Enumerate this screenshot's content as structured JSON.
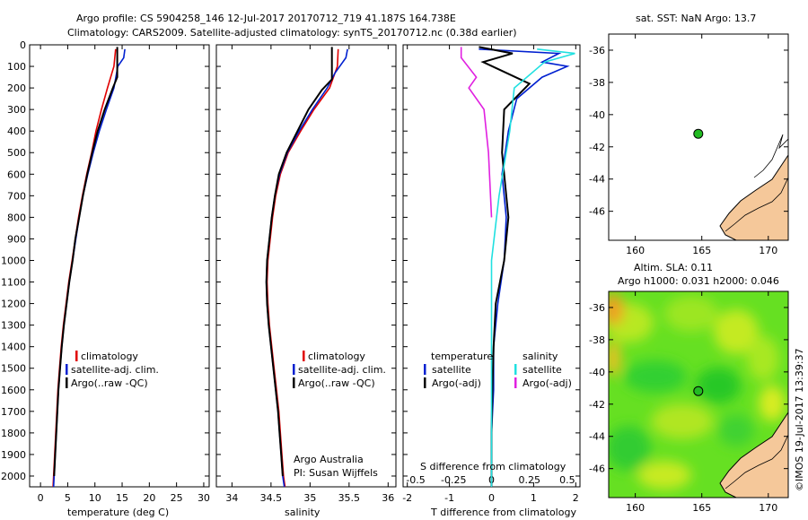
{
  "titles": {
    "line1": "Argo profile: CS 5904258_146 12-Jul-2017 20170712_719 41.187S 164.738E",
    "line2": "Climatology: CARS2009. Satellite-adjusted climatology: synTS_20170712.nc (0.38d earlier)"
  },
  "colors": {
    "climatology": "#e00000",
    "satellite": "#0020d0",
    "argo": "#000000",
    "cyan": "#20e0e0",
    "magenta": "#e020e0",
    "land": "#f5c89a",
    "marker": "#22bb22"
  },
  "chart_data": [
    {
      "type": "line",
      "panel": "temperature",
      "xlabel": "temperature (deg C)",
      "ylabel": "",
      "xlim": [
        -2,
        31
      ],
      "ylim": [
        0,
        2050
      ],
      "xticks": [
        "0",
        "5",
        "10",
        "15",
        "20",
        "25",
        "30"
      ],
      "yticks": [
        "0",
        "100",
        "200",
        "300",
        "400",
        "500",
        "600",
        "700",
        "800",
        "900",
        "1000",
        "1100",
        "1200",
        "1300",
        "1400",
        "1500",
        "1600",
        "1700",
        "1800",
        "1900",
        "2000"
      ],
      "legend": [
        "climatology",
        "satellite-adj. clim.",
        "Argo(..raw -QC)"
      ],
      "series": [
        {
          "name": "climatology",
          "color": "climatology",
          "points": [
            [
              13.8,
              20
            ],
            [
              13.5,
              100
            ],
            [
              12.3,
              200
            ],
            [
              11.2,
              300
            ],
            [
              10.2,
              400
            ],
            [
              9.4,
              500
            ],
            [
              8.5,
              600
            ],
            [
              7.7,
              700
            ],
            [
              7.0,
              800
            ],
            [
              6.4,
              900
            ],
            [
              5.8,
              1000
            ],
            [
              5.2,
              1100
            ],
            [
              4.7,
              1200
            ],
            [
              4.2,
              1300
            ],
            [
              3.8,
              1400
            ],
            [
              3.5,
              1500
            ],
            [
              3.2,
              1600
            ],
            [
              3.0,
              1700
            ],
            [
              2.8,
              1800
            ],
            [
              2.6,
              1900
            ],
            [
              2.4,
              2000
            ],
            [
              2.3,
              2050
            ]
          ]
        },
        {
          "name": "satellite-adj. clim.",
          "color": "satellite",
          "points": [
            [
              15.5,
              20
            ],
            [
              15.3,
              60
            ],
            [
              14.2,
              100
            ],
            [
              13.5,
              200
            ],
            [
              12.1,
              300
            ],
            [
              10.8,
              400
            ],
            [
              9.7,
              500
            ],
            [
              8.7,
              600
            ],
            [
              7.8,
              700
            ],
            [
              7.1,
              800
            ],
            [
              6.5,
              900
            ],
            [
              5.9,
              1000
            ],
            [
              5.3,
              1100
            ],
            [
              4.8,
              1200
            ],
            [
              4.3,
              1300
            ],
            [
              3.9,
              1400
            ],
            [
              3.6,
              1500
            ],
            [
              3.3,
              1600
            ],
            [
              3.1,
              1700
            ],
            [
              2.9,
              1800
            ],
            [
              2.7,
              1900
            ],
            [
              2.5,
              2000
            ],
            [
              2.4,
              2050
            ]
          ]
        },
        {
          "name": "Argo(..raw -QC)",
          "color": "argo",
          "points": [
            [
              14.1,
              10
            ],
            [
              14.1,
              150
            ],
            [
              13.3,
              200
            ],
            [
              11.8,
              300
            ],
            [
              10.5,
              400
            ],
            [
              9.5,
              500
            ],
            [
              8.6,
              600
            ],
            [
              7.8,
              700
            ],
            [
              7.1,
              800
            ],
            [
              6.4,
              900
            ],
            [
              5.9,
              1000
            ],
            [
              5.3,
              1100
            ],
            [
              4.8,
              1200
            ],
            [
              4.3,
              1300
            ],
            [
              3.9,
              1400
            ],
            [
              3.6,
              1500
            ],
            [
              3.3,
              1600
            ],
            [
              3.1,
              1700
            ],
            [
              2.9,
              1800
            ],
            [
              2.7,
              1900
            ],
            [
              2.5,
              2000
            ]
          ]
        }
      ]
    },
    {
      "type": "line",
      "panel": "salinity",
      "xlabel": "salinity",
      "xlim": [
        33.8,
        36.1
      ],
      "ylim": [
        0,
        2050
      ],
      "xticks": [
        "34",
        "34.5",
        "35",
        "35.5",
        "36"
      ],
      "legend": [
        "climatology",
        "satellite-adj. clim.",
        "Argo(..raw -QC)"
      ],
      "notes": [
        "Argo Australia",
        "PI: Susan Wijffels"
      ],
      "series": [
        {
          "name": "climatology",
          "color": "climatology",
          "points": [
            [
              35.36,
              20
            ],
            [
              35.35,
              100
            ],
            [
              35.25,
              200
            ],
            [
              35.05,
              300
            ],
            [
              34.88,
              400
            ],
            [
              34.72,
              500
            ],
            [
              34.62,
              600
            ],
            [
              34.56,
              700
            ],
            [
              34.52,
              800
            ],
            [
              34.49,
              900
            ],
            [
              34.46,
              1000
            ],
            [
              34.45,
              1100
            ],
            [
              34.46,
              1200
            ],
            [
              34.48,
              1300
            ],
            [
              34.51,
              1400
            ],
            [
              34.54,
              1500
            ],
            [
              34.57,
              1600
            ],
            [
              34.6,
              1700
            ],
            [
              34.62,
              1800
            ],
            [
              34.64,
              1900
            ],
            [
              34.66,
              2000
            ],
            [
              34.68,
              2050
            ]
          ]
        },
        {
          "name": "satellite-adj. clim.",
          "color": "satellite",
          "points": [
            [
              35.48,
              20
            ],
            [
              35.46,
              60
            ],
            [
              35.32,
              130
            ],
            [
              35.22,
              200
            ],
            [
              35.03,
              300
            ],
            [
              34.86,
              400
            ],
            [
              34.71,
              500
            ],
            [
              34.61,
              600
            ],
            [
              34.55,
              700
            ],
            [
              34.51,
              800
            ],
            [
              34.48,
              900
            ],
            [
              34.45,
              1000
            ],
            [
              34.44,
              1100
            ],
            [
              34.45,
              1200
            ],
            [
              34.47,
              1300
            ],
            [
              34.5,
              1400
            ],
            [
              34.53,
              1500
            ],
            [
              34.56,
              1600
            ],
            [
              34.59,
              1700
            ],
            [
              34.61,
              1800
            ],
            [
              34.63,
              1900
            ],
            [
              34.65,
              2000
            ],
            [
              34.67,
              2050
            ]
          ]
        },
        {
          "name": "Argo(..raw -QC)",
          "color": "argo",
          "points": [
            [
              35.28,
              10
            ],
            [
              35.28,
              160
            ],
            [
              35.15,
              210
            ],
            [
              34.98,
              300
            ],
            [
              34.84,
              400
            ],
            [
              34.7,
              500
            ],
            [
              34.6,
              600
            ],
            [
              34.55,
              700
            ],
            [
              34.51,
              800
            ],
            [
              34.48,
              900
            ],
            [
              34.45,
              1000
            ],
            [
              34.44,
              1100
            ],
            [
              34.45,
              1200
            ],
            [
              34.47,
              1300
            ],
            [
              34.5,
              1400
            ],
            [
              34.53,
              1500
            ],
            [
              34.56,
              1600
            ],
            [
              34.59,
              1700
            ],
            [
              34.61,
              1800
            ],
            [
              34.63,
              1900
            ],
            [
              34.65,
              2000
            ]
          ]
        }
      ]
    },
    {
      "type": "line",
      "panel": "differences",
      "xlabel": "T difference from climatology",
      "xlabel_top": "S difference from climatology",
      "xlim": [
        -2.1,
        2.1
      ],
      "ylim": [
        0,
        2050
      ],
      "xticks": [
        "-2",
        "-1",
        "0",
        "1",
        "2"
      ],
      "xticks_s": [
        "-0.5",
        "-0.25",
        "0",
        "0.25",
        "0.5"
      ],
      "legend_headers": [
        "temperature",
        "salinity"
      ],
      "legend": [
        "satellite",
        "Argo(-adj)",
        "satellite",
        "Argo(-adj)"
      ],
      "series": [
        {
          "name": "T satellite",
          "color": "satellite",
          "points": [
            [
              -0.3,
              20
            ],
            [
              1.6,
              40
            ],
            [
              1.2,
              80
            ],
            [
              1.8,
              100
            ],
            [
              1.2,
              150
            ],
            [
              0.6,
              250
            ],
            [
              0.4,
              400
            ],
            [
              0.25,
              600
            ],
            [
              0.35,
              800
            ],
            [
              0.3,
              1000
            ],
            [
              0.15,
              1200
            ],
            [
              0.05,
              1400
            ],
            [
              0.05,
              1600
            ],
            [
              0.0,
              1800
            ],
            [
              0.0,
              2050
            ]
          ]
        },
        {
          "name": "T Argo(-adj)",
          "color": "argo",
          "points": [
            [
              -0.3,
              10
            ],
            [
              0.5,
              40
            ],
            [
              -0.2,
              80
            ],
            [
              0.9,
              180
            ],
            [
              0.3,
              300
            ],
            [
              0.25,
              500
            ],
            [
              0.4,
              800
            ],
            [
              0.3,
              1000
            ],
            [
              0.1,
              1200
            ],
            [
              0.05,
              1400
            ],
            [
              0.02,
              1600
            ],
            [
              0.0,
              1800
            ],
            [
              0.0,
              2050
            ]
          ]
        },
        {
          "name": "S satellite",
          "color": "cyan",
          "points": [
            [
              0.3,
              20
            ],
            [
              0.55,
              40
            ],
            [
              0.35,
              80
            ],
            [
              0.15,
              200
            ],
            [
              0.12,
              400
            ],
            [
              0.05,
              700
            ],
            [
              0.0,
              1000
            ],
            [
              0.0,
              1400
            ],
            [
              0.0,
              2050
            ]
          ]
        },
        {
          "name": "S Argo(-adj)",
          "color": "magenta",
          "points": [
            [
              -0.2,
              10
            ],
            [
              -0.2,
              60
            ],
            [
              -0.1,
              150
            ],
            [
              -0.15,
              200
            ],
            [
              -0.05,
              300
            ],
            [
              -0.02,
              500
            ],
            [
              0.0,
              800
            ]
          ]
        }
      ]
    }
  ],
  "map_sst": {
    "title": "sat. SST: NaN Argo: 13.7",
    "yticks": [
      "-36",
      "-38",
      "-40",
      "-42",
      "-44",
      "-46"
    ],
    "xticks": [
      "160",
      "165",
      "170"
    ],
    "lon_range": [
      158,
      171.5
    ],
    "lat_range": [
      -35,
      -47.8
    ],
    "marker": {
      "lon": 164.738,
      "lat": -41.187
    }
  },
  "map_sla": {
    "title1": "Altim. SLA: 0.11",
    "title2": "Argo h1000: 0.031 h2000: 0.046",
    "yticks": [
      "-36",
      "-38",
      "-40",
      "-42",
      "-44",
      "-46"
    ],
    "xticks": [
      "160",
      "165",
      "170"
    ],
    "lon_range": [
      158,
      171.5
    ],
    "lat_range": [
      -35,
      -47.8
    ],
    "marker": {
      "lon": 164.738,
      "lat": -41.187
    }
  },
  "credit": "©IMOS 19-Jul-2017 13:39:37"
}
